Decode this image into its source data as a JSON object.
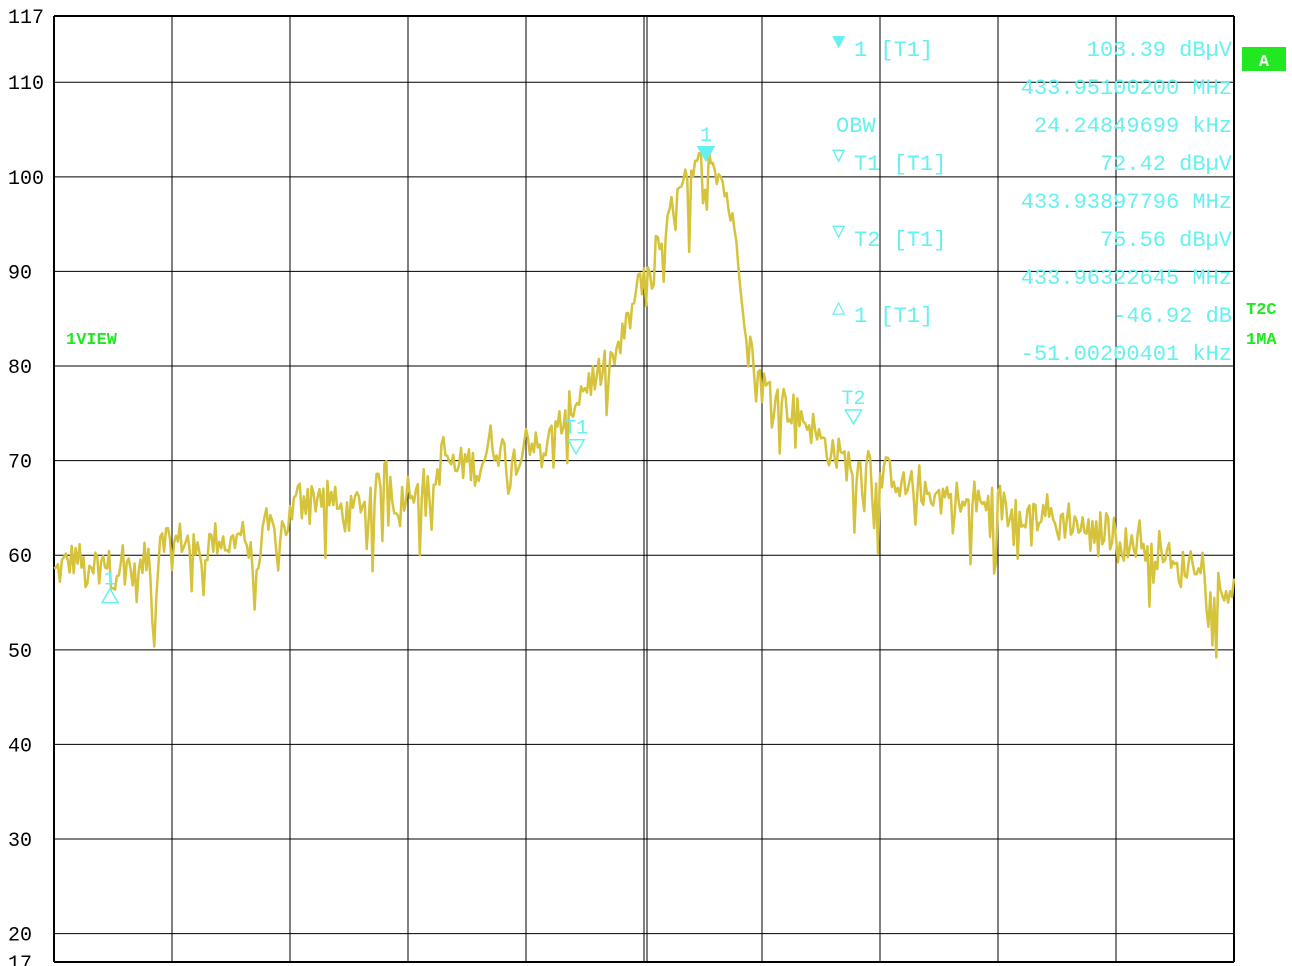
{
  "chart_data": {
    "type": "line",
    "y_ticks": [
      "117",
      "110",
      "100",
      "90",
      "80",
      "70",
      "60",
      "50",
      "40",
      "30",
      "20",
      "17"
    ],
    "ylim": [
      17,
      117
    ],
    "xlim": [
      0,
      1
    ],
    "grid": true,
    "series": [
      {
        "color": "#d6c33c",
        "x": [
          0.0,
          0.01,
          0.02,
          0.03,
          0.04,
          0.045,
          0.05,
          0.06,
          0.07,
          0.075,
          0.08,
          0.085,
          0.09,
          0.1,
          0.11,
          0.12,
          0.13,
          0.14,
          0.15,
          0.16,
          0.17,
          0.18,
          0.19,
          0.2,
          0.21,
          0.22,
          0.23,
          0.24,
          0.25,
          0.26,
          0.27,
          0.28,
          0.29,
          0.3,
          0.31,
          0.32,
          0.33,
          0.34,
          0.35,
          0.36,
          0.37,
          0.38,
          0.39,
          0.4,
          0.41,
          0.42,
          0.43,
          0.44,
          0.45,
          0.46,
          0.47,
          0.48,
          0.49,
          0.5,
          0.51,
          0.52,
          0.53,
          0.54,
          0.55,
          0.555,
          0.56,
          0.565,
          0.57,
          0.575,
          0.58,
          0.585,
          0.59,
          0.595,
          0.6,
          0.61,
          0.62,
          0.63,
          0.64,
          0.65,
          0.66,
          0.67,
          0.68,
          0.69,
          0.7,
          0.71,
          0.72,
          0.73,
          0.74,
          0.75,
          0.76,
          0.77,
          0.78,
          0.79,
          0.8,
          0.81,
          0.82,
          0.83,
          0.84,
          0.85,
          0.86,
          0.87,
          0.88,
          0.89,
          0.9,
          0.91,
          0.92,
          0.93,
          0.94,
          0.95,
          0.96,
          0.97,
          0.98,
          0.99,
          1.0
        ],
        "y": [
          58,
          59,
          60,
          57,
          61,
          59,
          58,
          60,
          57,
          59,
          60,
          52,
          63,
          61,
          62,
          60,
          61,
          62,
          61,
          63,
          58,
          63,
          62,
          64,
          67,
          66,
          67,
          65,
          64,
          66,
          65,
          70,
          66,
          67,
          68,
          66,
          71,
          69,
          70,
          69,
          72,
          71,
          70,
          73,
          71,
          72,
          74,
          76,
          78,
          79,
          80,
          82,
          86,
          90,
          92,
          95,
          98,
          100,
          102,
          103.4,
          101,
          100,
          98,
          95,
          92,
          86,
          82,
          80,
          78,
          77,
          76,
          75,
          74,
          72,
          71,
          70,
          69,
          70,
          68,
          69,
          67,
          68,
          67,
          66,
          67,
          65,
          66,
          65,
          66,
          64,
          65,
          64,
          65,
          63,
          64,
          63,
          62,
          63,
          62,
          61,
          62,
          60,
          61,
          58,
          59,
          60,
          58,
          56,
          57
        ]
      }
    ],
    "markers": [
      {
        "label": "1",
        "x": 0.5525,
        "y": 103.39,
        "style": "filled"
      },
      {
        "label": "T1",
        "x": 0.4425,
        "y": 72.42,
        "style": "open"
      },
      {
        "label": "T2",
        "x": 0.6775,
        "y": 75.56,
        "style": "open"
      },
      {
        "label": "1",
        "x": 0.0475,
        "y": 56.47,
        "style": "delta"
      }
    ],
    "marker_table": [
      {
        "symbol": "▼",
        "name": "1 [T1]",
        "value": "103.39 dBµV",
        "freq": "433.95100200 MHz"
      },
      {
        "symbol": "",
        "name": "OBW",
        "value": "24.24849699 kHz",
        "freq": ""
      },
      {
        "symbol": "▽",
        "name": "T1 [T1]",
        "value": "72.42 dBµV",
        "freq": "433.93897796 MHz"
      },
      {
        "symbol": "▽",
        "name": "T2 [T1]",
        "value": "75.56 dBµV",
        "freq": "433.96322645 MHz"
      },
      {
        "symbol": "△",
        "name": "1 [T1]",
        "value": "-46.92 dB",
        "freq": "-51.00200401 kHz"
      }
    ]
  },
  "badges": {
    "trace_a": "A",
    "view_label": "1VIEW",
    "right_1": "T2C",
    "right_2": "1MA"
  },
  "colors": {
    "trace": "#d6c33c",
    "marker": "#66f0f0",
    "badge_green": "#22e822"
  }
}
